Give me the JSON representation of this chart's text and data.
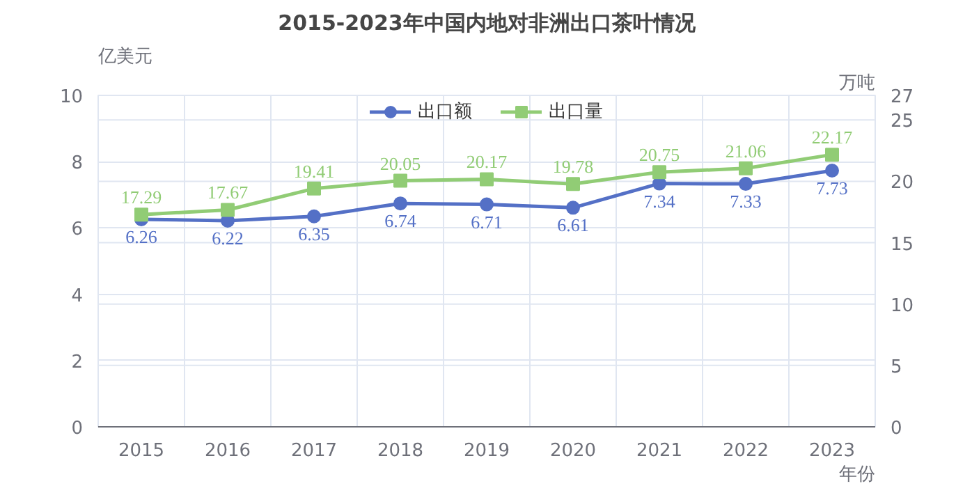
{
  "chart_data": {
    "type": "line",
    "title": "2015-2023年中国内地对非洲出口茶叶情况",
    "categories": [
      "2015",
      "2016",
      "2017",
      "2018",
      "2019",
      "2020",
      "2021",
      "2022",
      "2023"
    ],
    "ylabel": "亿美元",
    "y2label": "万吨",
    "xlabel": "年份",
    "series": [
      {
        "name": "出口额",
        "color": "#5470c6",
        "marker": "circle",
        "values": [
          6.26,
          6.22,
          6.35,
          6.74,
          6.71,
          6.61,
          7.34,
          7.33,
          7.73
        ]
      },
      {
        "name": "出口量",
        "color": "#91cc75",
        "marker": "square",
        "axis": "y2",
        "values": [
          17.29,
          17.67,
          19.41,
          20.05,
          20.17,
          19.78,
          20.75,
          21.06,
          22.17
        ]
      }
    ],
    "ylim": [
      0,
      10
    ],
    "yticks": [
      0,
      2,
      4,
      6,
      8,
      10
    ],
    "y2lim": [
      0,
      27
    ],
    "y2ticks": [
      0,
      5,
      10,
      15,
      20,
      25,
      27
    ],
    "grid": true,
    "legend": "top",
    "data_labels": true,
    "line_style": "solid"
  }
}
